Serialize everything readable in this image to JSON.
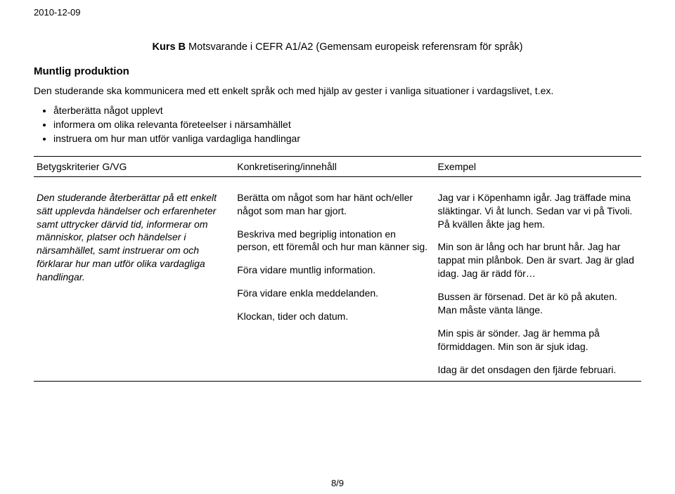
{
  "date": "2010-12-09",
  "course_prefix": "Kurs B",
  "course_rest": " Motsvarande i CEFR A1/A2 (Gemensam europeisk referensram för språk)",
  "section_title": "Muntlig produktion",
  "intro": "Den studerande ska kommunicera med ett enkelt språk och med hjälp av gester i vanliga situationer i vardagslivet, t.ex.",
  "bullets": [
    "återberätta något upplevt",
    "informera om olika relevanta företeelser i närsamhället",
    "instruera om hur man utför vanliga vardagliga handlingar"
  ],
  "table": {
    "headers": [
      "Betygskriterier G/VG",
      "Konkretisering/innehåll",
      "Exempel"
    ],
    "col1_para": "Den studerande återberättar på ett enkelt sätt upplevda händelser och erfarenheter samt uttrycker därvid tid, informerar om människor, platser och händelser i närsamhället, samt instruerar om och förklarar hur man utför olika vardagliga handlingar.",
    "col2_paras": [
      "Berätta om något som har hänt och/eller något som man har gjort.",
      "Beskriva med begriplig intonation en person, ett föremål och hur man känner sig.",
      "Föra vidare muntlig information.",
      "Föra vidare enkla meddelanden.",
      "Klockan, tider och datum."
    ],
    "col3_paras": [
      "Jag var i Köpenhamn igår. Jag träffade mina släktingar. Vi åt lunch. Sedan var vi på Tivoli. På kvällen åkte jag hem.",
      "Min son är lång och har brunt hår. Jag har tappat min plånbok. Den är svart. Jag är glad idag. Jag är rädd för…",
      "Bussen är försenad. Det är kö på akuten. Man måste vänta länge.",
      "Min spis är sönder. Jag är hemma på förmiddagen. Min son är sjuk idag.",
      "Idag är det onsdagen den fjärde februari."
    ]
  },
  "page_number": "8/9",
  "colors": {
    "text": "#000000",
    "background": "#ffffff",
    "border": "#000000"
  },
  "typography": {
    "body_fontsize_pt": 11,
    "heading_fontsize_pt": 12,
    "font_family": "Arial"
  }
}
